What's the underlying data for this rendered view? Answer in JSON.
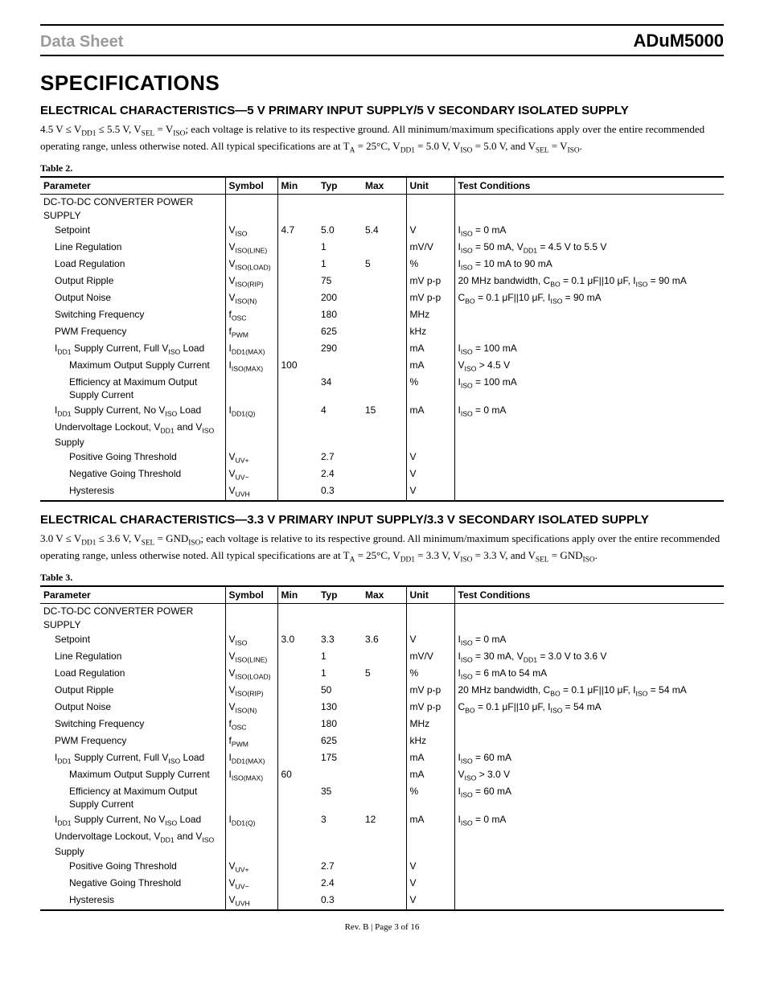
{
  "header": {
    "left": "Data Sheet",
    "right": "ADuM5000"
  },
  "title": "SPECIFICATIONS",
  "footer": "Rev. B | Page 3 of 16",
  "colors": {
    "header_gray": "#9a9a9a",
    "rule": "#000000",
    "text": "#000000",
    "bg": "#ffffff"
  },
  "font_sizes": {
    "title": 26,
    "h2": 15,
    "body": 13,
    "table": 12,
    "footer": 11
  },
  "sections": [
    {
      "heading": "ELECTRICAL CHARACTERISTICS—5 V PRIMARY INPUT SUPPLY/5 V SECONDARY ISOLATED SUPPLY",
      "intro_html": "4.5 V ≤ V<sub>DD1</sub> ≤ 5.5 V, V<sub>SEL</sub> = V<sub>ISO</sub>; each voltage is relative to its respective ground. All minimum/maximum specifications apply over the entire recommended operating range, unless otherwise noted. All typical specifications are at T<sub>A</sub> = 25°C, V<sub>DD1</sub> = 5.0 V, V<sub>ISO</sub> = 5.0 V, and V<sub>SEL</sub> = V<sub>ISO</sub>.",
      "table_label": "Table 2.",
      "columns": [
        "Parameter",
        "Symbol",
        "Min",
        "Typ",
        "Max",
        "Unit",
        "Test Conditions"
      ],
      "rows": [
        {
          "param": "DC-TO-DC CONVERTER POWER SUPPLY",
          "indent": 0,
          "sym": "",
          "min": "",
          "typ": "",
          "max": "",
          "unit": "",
          "cond": ""
        },
        {
          "param": "Setpoint",
          "indent": 1,
          "sym": "V<sub>ISO</sub>",
          "min": "4.7",
          "typ": "5.0",
          "max": "5.4",
          "unit": "V",
          "cond": "I<sub>ISO</sub> = 0 mA"
        },
        {
          "param": "Line Regulation",
          "indent": 1,
          "sym": "V<sub>ISO(LINE)</sub>",
          "min": "",
          "typ": "1",
          "max": "",
          "unit": "mV/V",
          "cond": "I<sub>ISO</sub> = 50 mA, V<sub>DD1</sub> = 4.5 V to 5.5 V"
        },
        {
          "param": "Load Regulation",
          "indent": 1,
          "sym": "V<sub>ISO(LOAD)</sub>",
          "min": "",
          "typ": "1",
          "max": "5",
          "unit": "%",
          "cond": "I<sub>ISO</sub> = 10 mA to 90 mA"
        },
        {
          "param": "Output Ripple",
          "indent": 1,
          "sym": "V<sub>ISO(RIP)</sub>",
          "min": "",
          "typ": "75",
          "max": "",
          "unit": "mV p-p",
          "cond": "20 MHz bandwidth, C<sub>BO</sub> = 0.1 μF||10 μF, I<sub>ISO</sub> = 90 mA"
        },
        {
          "param": "Output Noise",
          "indent": 1,
          "sym": "V<sub>ISO(N)</sub>",
          "min": "",
          "typ": "200",
          "max": "",
          "unit": "mV p-p",
          "cond": "C<sub>BO</sub> = 0.1 μF||10 μF, I<sub>ISO</sub> = 90 mA"
        },
        {
          "param": "Switching Frequency",
          "indent": 1,
          "sym": "f<sub>OSC</sub>",
          "min": "",
          "typ": "180",
          "max": "",
          "unit": "MHz",
          "cond": ""
        },
        {
          "param": "PWM Frequency",
          "indent": 1,
          "sym": "f<sub>PWM</sub>",
          "min": "",
          "typ": "625",
          "max": "",
          "unit": "kHz",
          "cond": ""
        },
        {
          "param": "I<sub>DD1</sub> Supply Current, Full V<sub>ISO</sub> Load",
          "indent": 1,
          "sym": "I<sub>DD1(MAX)</sub>",
          "min": "",
          "typ": "290",
          "max": "",
          "unit": "mA",
          "cond": "I<sub>ISO</sub> = 100 mA"
        },
        {
          "param": "Maximum Output Supply Current",
          "indent": 2,
          "sym": "I<sub>ISO(MAX)</sub>",
          "min": "100",
          "typ": "",
          "max": "",
          "unit": "mA",
          "cond": "V<sub>ISO</sub> > 4.5 V"
        },
        {
          "param": "Efficiency at Maximum Output Supply Current",
          "indent": 2,
          "sym": "",
          "min": "",
          "typ": "34",
          "max": "",
          "unit": "%",
          "cond": "I<sub>ISO</sub> = 100 mA"
        },
        {
          "param": "I<sub>DD1</sub> Supply Current, No V<sub>ISO</sub> Load",
          "indent": 1,
          "sym": "I<sub>DD1(Q)</sub>",
          "min": "",
          "typ": "4",
          "max": "15",
          "unit": "mA",
          "cond": "I<sub>ISO</sub> = 0 mA"
        },
        {
          "param": "Undervoltage Lockout, V<sub>DD1</sub> and V<sub>ISO</sub> Supply",
          "indent": 1,
          "sym": "",
          "min": "",
          "typ": "",
          "max": "",
          "unit": "",
          "cond": ""
        },
        {
          "param": "Positive Going Threshold",
          "indent": 2,
          "sym": "V<sub>UV+</sub>",
          "min": "",
          "typ": "2.7",
          "max": "",
          "unit": "V",
          "cond": ""
        },
        {
          "param": "Negative Going Threshold",
          "indent": 2,
          "sym": "V<sub>UV−</sub>",
          "min": "",
          "typ": "2.4",
          "max": "",
          "unit": "V",
          "cond": ""
        },
        {
          "param": "Hysteresis",
          "indent": 2,
          "sym": "V<sub>UVH</sub>",
          "min": "",
          "typ": "0.3",
          "max": "",
          "unit": "V",
          "cond": ""
        }
      ]
    },
    {
      "heading": "ELECTRICAL CHARACTERISTICS—3.3 V PRIMARY INPUT SUPPLY/3.3 V SECONDARY ISOLATED SUPPLY",
      "intro_html": "3.0 V ≤ V<sub>DD1</sub> ≤ 3.6 V, V<sub>SEL</sub> = GND<sub>ISO</sub>; each voltage is relative to its respective ground. All minimum/maximum specifications apply over the entire recommended operating range, unless otherwise noted. All typical specifications are at T<sub>A</sub> = 25°C, V<sub>DD1</sub> = 3.3 V, V<sub>ISO</sub> = 3.3 V, and V<sub>SEL</sub> = GND<sub>ISO</sub>.",
      "table_label": "Table 3.",
      "columns": [
        "Parameter",
        "Symbol",
        "Min",
        "Typ",
        "Max",
        "Unit",
        "Test Conditions"
      ],
      "rows": [
        {
          "param": "DC-TO-DC CONVERTER POWER SUPPLY",
          "indent": 0,
          "sym": "",
          "min": "",
          "typ": "",
          "max": "",
          "unit": "",
          "cond": ""
        },
        {
          "param": "Setpoint",
          "indent": 1,
          "sym": "V<sub>ISO</sub>",
          "min": "3.0",
          "typ": "3.3",
          "max": "3.6",
          "unit": "V",
          "cond": "I<sub>ISO</sub> = 0 mA"
        },
        {
          "param": "Line Regulation",
          "indent": 1,
          "sym": "V<sub>ISO(LINE)</sub>",
          "min": "",
          "typ": "1",
          "max": "",
          "unit": "mV/V",
          "cond": "I<sub>ISO</sub> = 30 mA, V<sub>DD1</sub> = 3.0 V to 3.6 V"
        },
        {
          "param": "Load Regulation",
          "indent": 1,
          "sym": "V<sub>ISO(LOAD)</sub>",
          "min": "",
          "typ": "1",
          "max": "5",
          "unit": "%",
          "cond": "I<sub>ISO</sub> = 6 mA to 54 mA"
        },
        {
          "param": "Output Ripple",
          "indent": 1,
          "sym": "V<sub>ISO(RIP)</sub>",
          "min": "",
          "typ": "50",
          "max": "",
          "unit": "mV p-p",
          "cond": "20 MHz bandwidth, C<sub>BO</sub> = 0.1 μF||10 μF, I<sub>ISO</sub> = 54 mA"
        },
        {
          "param": "Output Noise",
          "indent": 1,
          "sym": "V<sub>ISO(N)</sub>",
          "min": "",
          "typ": "130",
          "max": "",
          "unit": "mV p-p",
          "cond": "C<sub>BO</sub> = 0.1 μF||10 μF, I<sub>ISO</sub> = 54 mA"
        },
        {
          "param": "Switching Frequency",
          "indent": 1,
          "sym": "f<sub>OSC</sub>",
          "min": "",
          "typ": "180",
          "max": "",
          "unit": "MHz",
          "cond": ""
        },
        {
          "param": "PWM Frequency",
          "indent": 1,
          "sym": "f<sub>PWM</sub>",
          "min": "",
          "typ": "625",
          "max": "",
          "unit": "kHz",
          "cond": ""
        },
        {
          "param": "I<sub>DD1</sub> Supply Current, Full V<sub>ISO</sub> Load",
          "indent": 1,
          "sym": "I<sub>DD1(MAX)</sub>",
          "min": "",
          "typ": "175",
          "max": "",
          "unit": "mA",
          "cond": "I<sub>ISO</sub> = 60 mA"
        },
        {
          "param": "Maximum Output Supply Current",
          "indent": 2,
          "sym": "I<sub>ISO(MAX)</sub>",
          "min": "60",
          "typ": "",
          "max": "",
          "unit": "mA",
          "cond": "V<sub>ISO</sub> > 3.0 V"
        },
        {
          "param": "Efficiency at Maximum Output Supply Current",
          "indent": 2,
          "sym": "",
          "min": "",
          "typ": "35",
          "max": "",
          "unit": "%",
          "cond": "I<sub>ISO</sub> = 60 mA"
        },
        {
          "param": "I<sub>DD1</sub> Supply Current, No V<sub>ISO</sub> Load",
          "indent": 1,
          "sym": "I<sub>DD1(Q)</sub>",
          "min": "",
          "typ": "3",
          "max": "12",
          "unit": "mA",
          "cond": "I<sub>ISO</sub> = 0 mA"
        },
        {
          "param": "Undervoltage Lockout, V<sub>DD1</sub> and V<sub>ISO</sub> Supply",
          "indent": 1,
          "sym": "",
          "min": "",
          "typ": "",
          "max": "",
          "unit": "",
          "cond": ""
        },
        {
          "param": "Positive Going Threshold",
          "indent": 2,
          "sym": "V<sub>UV+</sub>",
          "min": "",
          "typ": "2.7",
          "max": "",
          "unit": "V",
          "cond": ""
        },
        {
          "param": "Negative Going Threshold",
          "indent": 2,
          "sym": "V<sub>UV−</sub>",
          "min": "",
          "typ": "2.4",
          "max": "",
          "unit": "V",
          "cond": ""
        },
        {
          "param": "Hysteresis",
          "indent": 2,
          "sym": "V<sub>UVH</sub>",
          "min": "",
          "typ": "0.3",
          "max": "",
          "unit": "V",
          "cond": ""
        }
      ]
    }
  ]
}
